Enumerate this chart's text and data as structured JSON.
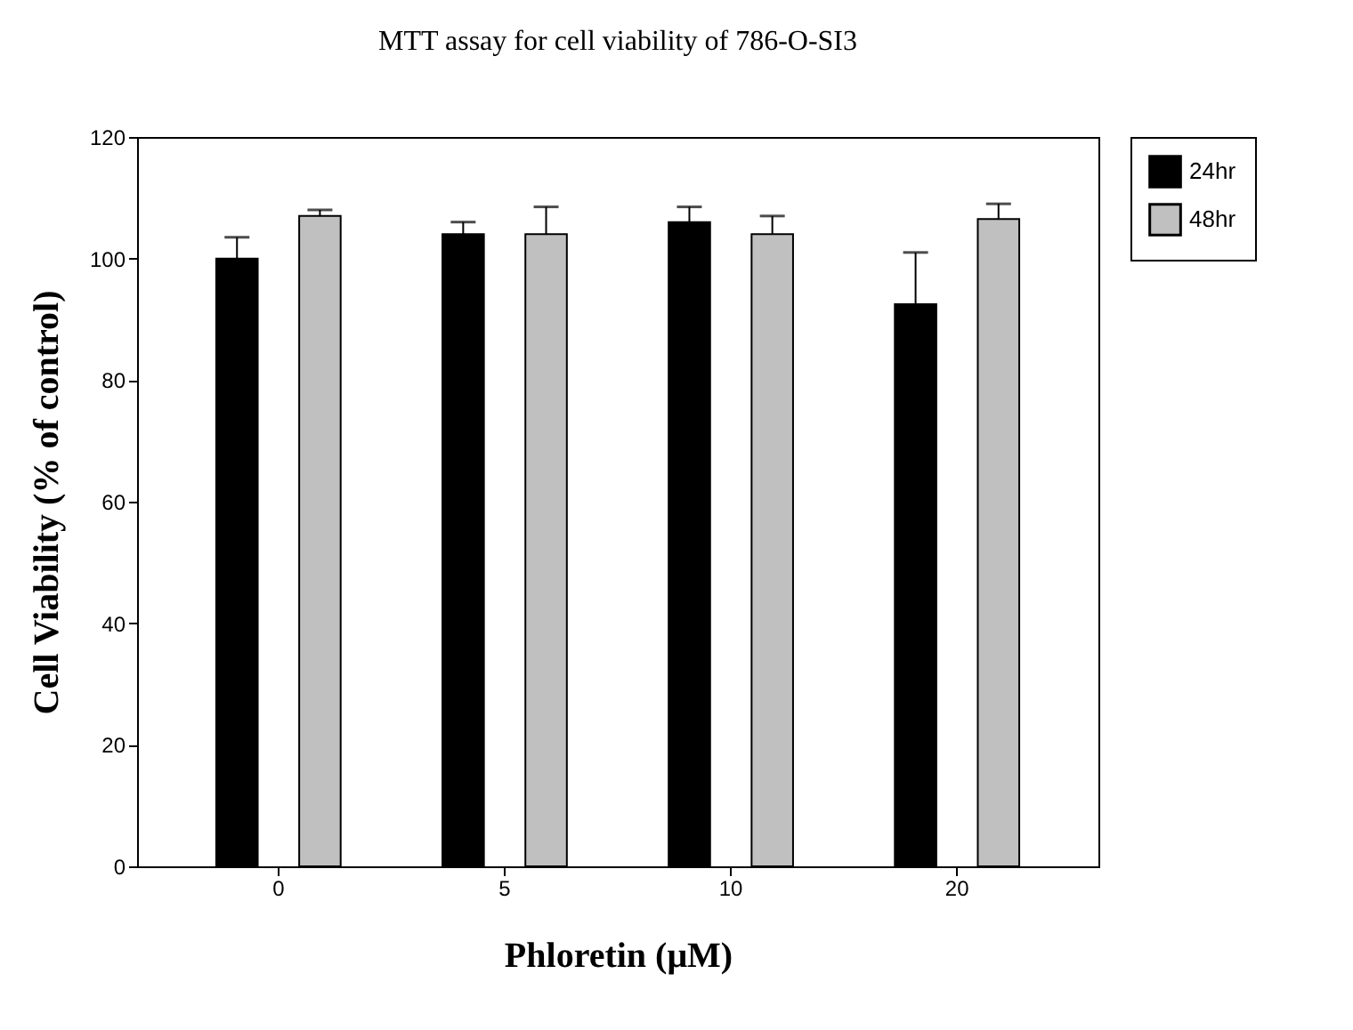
{
  "chart_data": {
    "type": "bar",
    "title": "MTT assay for cell viability of 786-O-SI3",
    "xlabel": "Phloretin (μM)",
    "ylabel": "Cell Viability (% of control)",
    "categories": [
      "0",
      "5",
      "10",
      "20"
    ],
    "series": [
      {
        "name": "24hr",
        "color": "#000000",
        "values": [
          100,
          104,
          106,
          92.5
        ],
        "errors": [
          [
            100,
            103.5
          ],
          [
            104,
            106
          ],
          [
            106,
            108.5
          ],
          [
            92.5,
            101
          ]
        ]
      },
      {
        "name": "48hr",
        "color": "#c0c0c0",
        "values": [
          107,
          104,
          104,
          106.5
        ],
        "errors": [
          [
            107,
            108
          ],
          [
            104,
            108.5
          ],
          [
            104,
            107
          ],
          [
            106.5,
            109
          ]
        ]
      }
    ],
    "ylim": [
      0,
      120
    ],
    "yticks": [
      0,
      20,
      40,
      60,
      80,
      100,
      120
    ],
    "grid": false,
    "legend": "top right"
  }
}
